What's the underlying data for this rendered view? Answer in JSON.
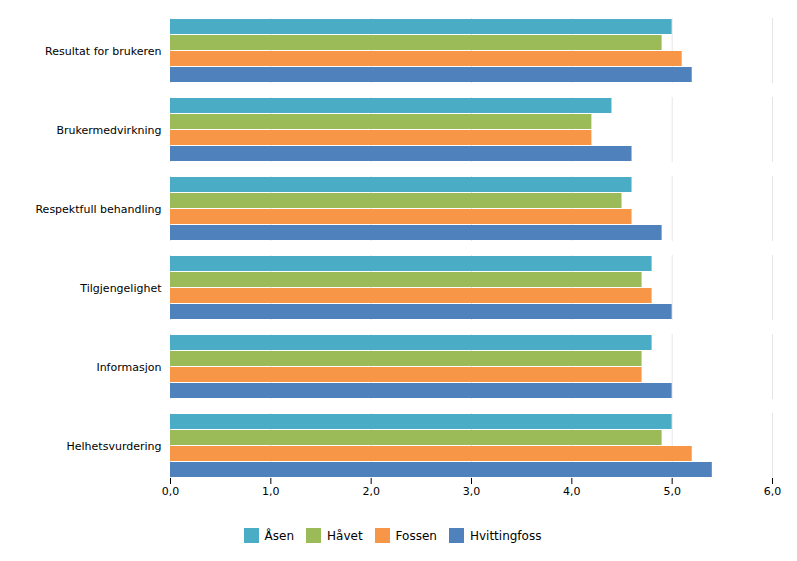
{
  "chart_data": {
    "type": "bar",
    "orientation": "horizontal",
    "categories": [
      "Helhetsvurdering",
      "Informasjon",
      "Tilgjengelighet",
      "Respektfull behandling",
      "Brukermedvirkning",
      "Resultat for brukeren"
    ],
    "series": [
      {
        "name": "Åsen",
        "color": "#4BACC6",
        "values": [
          5.0,
          4.8,
          4.8,
          4.6,
          4.4,
          5.0
        ]
      },
      {
        "name": "Håvet",
        "color": "#9BBB59",
        "values": [
          4.9,
          4.7,
          4.7,
          4.5,
          4.2,
          4.9
        ]
      },
      {
        "name": "Fossen",
        "color": "#F79646",
        "values": [
          5.2,
          4.7,
          4.8,
          4.6,
          4.2,
          5.1
        ]
      },
      {
        "name": "Hvittingfoss",
        "color": "#4F81BD",
        "values": [
          5.4,
          5.0,
          5.0,
          4.9,
          4.6,
          5.2
        ]
      }
    ],
    "xlim": [
      0,
      6.0
    ],
    "xticks": [
      {
        "value": 0.0,
        "label": "0,0"
      },
      {
        "value": 1.0,
        "label": "1,0"
      },
      {
        "value": 2.0,
        "label": "2,0"
      },
      {
        "value": 3.0,
        "label": "3,0"
      },
      {
        "value": 4.0,
        "label": "4,0"
      },
      {
        "value": 5.0,
        "label": "5,0"
      },
      {
        "value": 6.0,
        "label": "6,0"
      }
    ],
    "grid": true,
    "legend": "bottom"
  }
}
